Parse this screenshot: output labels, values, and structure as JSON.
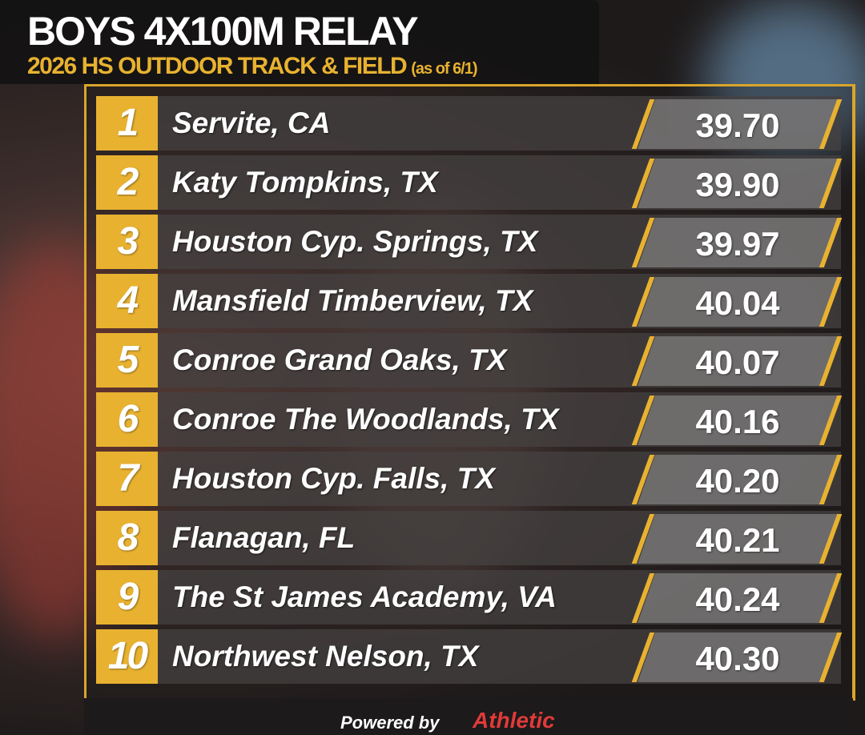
{
  "header": {
    "title": "BOYS 4X100M RELAY",
    "subtitle": "2026 HS OUTDOOR TRACK & FIELD",
    "note": "(as of 6/1)"
  },
  "table": {
    "rows": [
      {
        "rank": "1",
        "team": "Servite, CA",
        "time": "39.70"
      },
      {
        "rank": "2",
        "team": "Katy Tompkins, TX",
        "time": "39.90"
      },
      {
        "rank": "3",
        "team": "Houston Cyp. Springs, TX",
        "time": "39.97"
      },
      {
        "rank": "4",
        "team": "Mansfield Timberview, TX",
        "time": "40.04"
      },
      {
        "rank": "5",
        "team": "Conroe Grand Oaks, TX",
        "time": "40.07"
      },
      {
        "rank": "6",
        "team": "Conroe The Woodlands, TX",
        "time": "40.16"
      },
      {
        "rank": "7",
        "team": "Houston Cyp. Falls, TX",
        "time": "40.20"
      },
      {
        "rank": "8",
        "team": "Flanagan, FL",
        "time": "40.21"
      },
      {
        "rank": "9",
        "team": "The St James Academy, VA",
        "time": "40.24"
      },
      {
        "rank": "10",
        "team": "Northwest Nelson, TX",
        "time": "40.30"
      }
    ]
  },
  "footer": {
    "powered_by": "Powered by",
    "brand": "Athletic"
  }
}
